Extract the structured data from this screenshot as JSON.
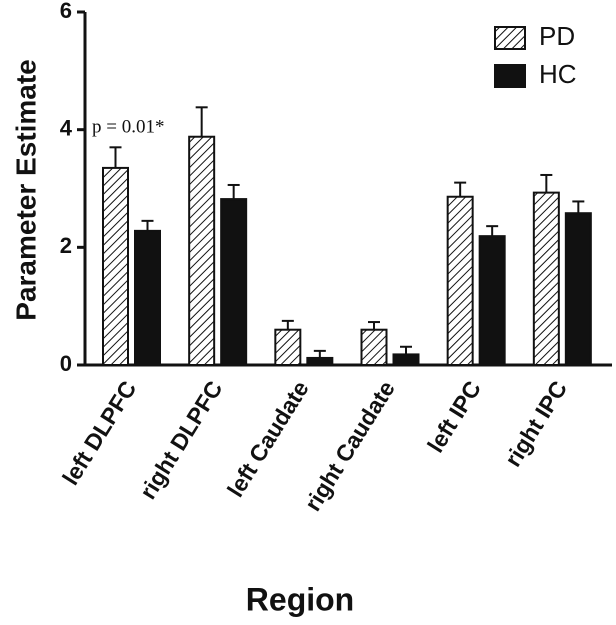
{
  "chart_data": {
    "type": "bar",
    "ylabel": "Parameter Estimate",
    "xlabel": "Region",
    "annotation": "p = 0.01*",
    "categories": [
      "left DLPFC",
      "right DLPFC",
      "left Caudate",
      "right Caudate",
      "left IPC",
      "right IPC"
    ],
    "series": [
      {
        "name": "PD",
        "color": "#ffffff",
        "hatch": true,
        "values": [
          3.35,
          3.88,
          0.6,
          0.6,
          2.86,
          2.93
        ],
        "errors": [
          0.35,
          0.5,
          0.15,
          0.13,
          0.24,
          0.3
        ]
      },
      {
        "name": "HC",
        "color": "#111111",
        "hatch": false,
        "values": [
          2.28,
          2.82,
          0.12,
          0.18,
          2.19,
          2.58
        ],
        "errors": [
          0.17,
          0.24,
          0.12,
          0.13,
          0.17,
          0.2
        ]
      }
    ],
    "ylim": [
      0,
      6
    ],
    "yticks": [
      0,
      2,
      4,
      6
    ],
    "legend": "top-right"
  }
}
